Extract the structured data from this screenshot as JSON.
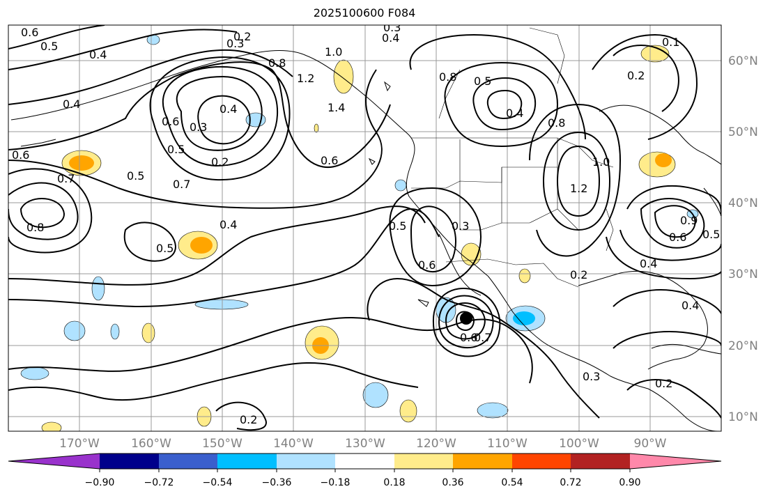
{
  "title": "2025100600 F084",
  "map": {
    "lat_ticks": [
      "60°N",
      "50°N",
      "40°N",
      "30°N",
      "20°N",
      "10°N"
    ],
    "lon_ticks": [
      "170°W",
      "160°W",
      "150°W",
      "140°W",
      "130°W",
      "120°W",
      "110°W",
      "100°W",
      "90°W"
    ],
    "contour_labels": [
      "0.6",
      "0.5",
      "0.4",
      "0.2",
      "0.3",
      "0.4",
      "0.3",
      "0.8",
      "1.0",
      "1.2",
      "1.4",
      "0.8",
      "0.5",
      "0.4",
      "0.8",
      "0.4",
      "0.6",
      "0.3",
      "0.4",
      "0.5",
      "0.2",
      "0.6",
      "0.5",
      "0.7",
      "0.6",
      "0.8",
      "0.7",
      "0.5",
      "0.4",
      "0.5",
      "0.6",
      "0.3",
      "0.6",
      "0.7",
      "1.0",
      "1.2",
      "0.2",
      "0.1",
      "0.9",
      "0.6",
      "0.5",
      "0.4",
      "0.4",
      "0.3",
      "0.2",
      "0.2",
      "0.2"
    ],
    "storm_marker": "tropical-cyclone-center"
  },
  "colorbar": {
    "colors": [
      "#9932cc",
      "#00008b",
      "#3a5fcd",
      "#00bfff",
      "#b0e2ff",
      "#ffffff",
      "#ffec8b",
      "#ffa500",
      "#ff4500",
      "#b22222",
      "#ff88aa"
    ],
    "tick_labels": [
      "−0.90",
      "−0.72",
      "−0.54",
      "−0.36",
      "−0.18",
      "0.18",
      "0.36",
      "0.54",
      "0.72",
      "0.90"
    ]
  }
}
